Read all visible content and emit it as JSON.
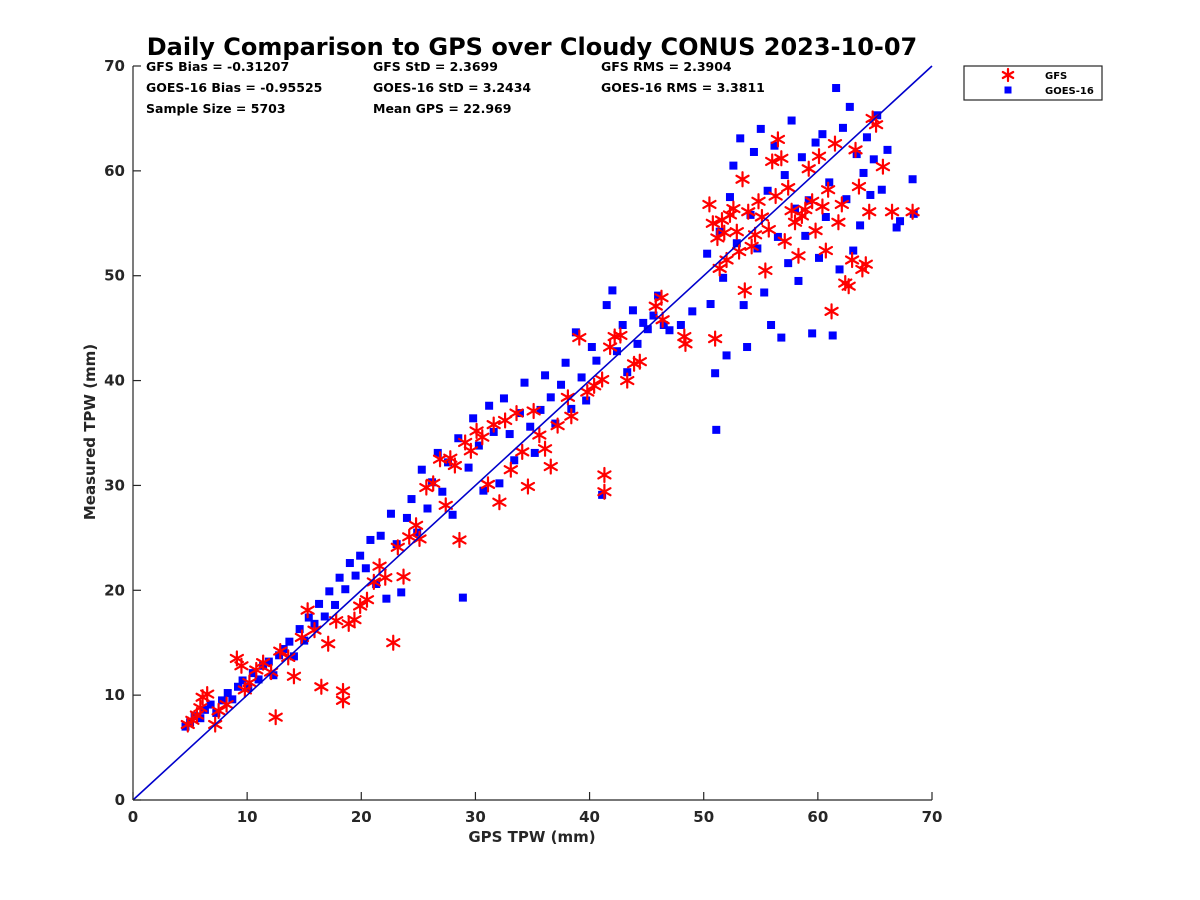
{
  "chart_data": {
    "type": "scatter",
    "title": "Daily Comparison to GPS over Cloudy CONUS 2023-10-07",
    "xlabel": "GPS TPW (mm)",
    "ylabel": "Measured TPW (mm)",
    "xlim": [
      0,
      70
    ],
    "ylim": [
      0,
      70
    ],
    "xticks": [
      "0",
      "10",
      "20",
      "30",
      "40",
      "50",
      "60",
      "70"
    ],
    "yticks": [
      "0",
      "10",
      "20",
      "30",
      "40",
      "50",
      "60",
      "70"
    ],
    "grid": false,
    "legend_position": "outside-top-right",
    "reference_line": {
      "x": [
        0,
        70
      ],
      "y": [
        0,
        70
      ],
      "color": "#0000cc"
    },
    "stats": [
      [
        "GFS Bias = -0.31207",
        "GFS StD = 2.3699",
        "GFS RMS = 2.3904"
      ],
      [
        "GOES-16 Bias = -0.95525",
        "GOES-16 StD = 3.2434",
        "GOES-16 RMS = 3.3811"
      ],
      [
        "Sample Size = 5703",
        "Mean GPS = 22.969",
        ""
      ]
    ],
    "series": [
      {
        "name": "GFS",
        "marker": "asterisk",
        "color": "#ff0000",
        "points": [
          [
            4.8,
            7.2
          ],
          [
            5.2,
            7.6
          ],
          [
            5.6,
            8.1
          ],
          [
            5.9,
            8.8
          ],
          [
            6.1,
            9.8
          ],
          [
            6.5,
            10.1
          ],
          [
            7.2,
            7.2
          ],
          [
            7.5,
            8.5
          ],
          [
            8.2,
            9.1
          ],
          [
            9.1,
            13.5
          ],
          [
            9.5,
            12.8
          ],
          [
            9.8,
            10.5
          ],
          [
            10.2,
            11.2
          ],
          [
            10.8,
            12.4
          ],
          [
            11.4,
            13.1
          ],
          [
            12.1,
            12.2
          ],
          [
            12.5,
            7.9
          ],
          [
            12.9,
            14.2
          ],
          [
            13.6,
            13.6
          ],
          [
            14.1,
            11.8
          ],
          [
            14.8,
            15.5
          ],
          [
            15.3,
            18.1
          ],
          [
            15.9,
            16.2
          ],
          [
            16.5,
            10.8
          ],
          [
            17.1,
            14.9
          ],
          [
            17.8,
            17.1
          ],
          [
            18.4,
            9.5
          ],
          [
            18.4,
            10.4
          ],
          [
            18.9,
            16.8
          ],
          [
            19.4,
            17.2
          ],
          [
            19.9,
            18.5
          ],
          [
            20.5,
            19.1
          ],
          [
            21.1,
            20.8
          ],
          [
            21.6,
            22.3
          ],
          [
            22.1,
            21.2
          ],
          [
            22.8,
            15.0
          ],
          [
            23.2,
            24.1
          ],
          [
            23.7,
            21.3
          ],
          [
            24.2,
            25.1
          ],
          [
            24.8,
            26.2
          ],
          [
            25.1,
            24.9
          ],
          [
            25.7,
            29.8
          ],
          [
            26.3,
            30.2
          ],
          [
            26.9,
            32.5
          ],
          [
            27.4,
            28.1
          ],
          [
            27.8,
            32.6
          ],
          [
            28.2,
            31.9
          ],
          [
            28.6,
            24.8
          ],
          [
            29.1,
            34.1
          ],
          [
            29.6,
            33.3
          ],
          [
            30.1,
            35.2
          ],
          [
            30.6,
            34.6
          ],
          [
            31.1,
            30.1
          ],
          [
            31.6,
            35.8
          ],
          [
            32.1,
            28.4
          ],
          [
            32.6,
            36.2
          ],
          [
            33.1,
            31.5
          ],
          [
            33.6,
            36.9
          ],
          [
            34.1,
            33.2
          ],
          [
            34.6,
            29.9
          ],
          [
            35.1,
            37.1
          ],
          [
            35.6,
            34.8
          ],
          [
            36.1,
            33.5
          ],
          [
            36.6,
            31.8
          ],
          [
            37.2,
            35.7
          ],
          [
            38.1,
            38.4
          ],
          [
            38.4,
            36.6
          ],
          [
            39.1,
            44.1
          ],
          [
            39.8,
            38.9
          ],
          [
            40.4,
            39.5
          ],
          [
            41.1,
            40.1
          ],
          [
            41.3,
            31.0
          ],
          [
            41.3,
            29.4
          ],
          [
            41.8,
            43.2
          ],
          [
            42.2,
            44.2
          ],
          [
            42.7,
            44.3
          ],
          [
            43.3,
            40.0
          ],
          [
            43.9,
            41.6
          ],
          [
            44.4,
            41.8
          ],
          [
            45.8,
            47.1
          ],
          [
            46.3,
            47.9
          ],
          [
            46.4,
            45.8
          ],
          [
            48.3,
            44.2
          ],
          [
            48.4,
            43.5
          ],
          [
            50.5,
            56.8
          ],
          [
            50.8,
            55.0
          ],
          [
            51.0,
            44.0
          ],
          [
            51.2,
            53.6
          ],
          [
            51.4,
            50.7
          ],
          [
            51.6,
            55.3
          ],
          [
            51.8,
            54.1
          ],
          [
            52.0,
            51.5
          ],
          [
            52.3,
            55.8
          ],
          [
            52.6,
            56.4
          ],
          [
            52.9,
            54.2
          ],
          [
            53.1,
            52.3
          ],
          [
            53.4,
            59.2
          ],
          [
            53.6,
            48.6
          ],
          [
            53.9,
            56.1
          ],
          [
            54.2,
            52.8
          ],
          [
            54.5,
            53.9
          ],
          [
            54.8,
            57.1
          ],
          [
            55.1,
            55.6
          ],
          [
            55.4,
            50.5
          ],
          [
            55.7,
            54.4
          ],
          [
            56.0,
            60.9
          ],
          [
            56.3,
            57.6
          ],
          [
            56.5,
            63.0
          ],
          [
            56.8,
            61.2
          ],
          [
            57.1,
            53.3
          ],
          [
            57.4,
            58.4
          ],
          [
            57.7,
            56.2
          ],
          [
            58.0,
            55.1
          ],
          [
            58.3,
            51.9
          ],
          [
            58.6,
            55.7
          ],
          [
            58.9,
            56.3
          ],
          [
            59.2,
            60.2
          ],
          [
            59.5,
            57.1
          ],
          [
            59.8,
            54.3
          ],
          [
            60.1,
            61.4
          ],
          [
            60.4,
            56.6
          ],
          [
            60.7,
            52.4
          ],
          [
            60.9,
            58.2
          ],
          [
            61.2,
            46.6
          ],
          [
            61.5,
            62.6
          ],
          [
            61.8,
            55.1
          ],
          [
            62.1,
            56.8
          ],
          [
            62.4,
            49.3
          ],
          [
            62.7,
            49.0
          ],
          [
            63.0,
            51.5
          ],
          [
            63.3,
            62.0
          ],
          [
            63.6,
            58.5
          ],
          [
            63.9,
            50.6
          ],
          [
            64.2,
            51.1
          ],
          [
            64.5,
            56.1
          ],
          [
            64.8,
            65.0
          ],
          [
            65.1,
            64.4
          ],
          [
            65.7,
            60.4
          ],
          [
            66.5,
            56.1
          ],
          [
            68.3,
            56.1
          ]
        ]
      },
      {
        "name": "GOES-16",
        "marker": "square",
        "color": "#0000ff",
        "points": [
          [
            4.6,
            7.0
          ],
          [
            5.0,
            7.4
          ],
          [
            5.4,
            8.0
          ],
          [
            5.9,
            7.8
          ],
          [
            6.3,
            8.6
          ],
          [
            6.8,
            9.1
          ],
          [
            7.3,
            8.3
          ],
          [
            7.8,
            9.5
          ],
          [
            8.3,
            10.2
          ],
          [
            8.7,
            9.6
          ],
          [
            9.2,
            10.8
          ],
          [
            9.6,
            11.4
          ],
          [
            10.1,
            10.7
          ],
          [
            10.5,
            12.1
          ],
          [
            11.0,
            11.5
          ],
          [
            11.4,
            12.8
          ],
          [
            11.9,
            13.2
          ],
          [
            12.3,
            11.9
          ],
          [
            12.8,
            13.8
          ],
          [
            13.2,
            14.4
          ],
          [
            13.7,
            15.1
          ],
          [
            14.1,
            13.7
          ],
          [
            14.6,
            16.3
          ],
          [
            15.0,
            15.2
          ],
          [
            15.4,
            17.4
          ],
          [
            15.9,
            16.8
          ],
          [
            16.3,
            18.7
          ],
          [
            16.8,
            17.5
          ],
          [
            17.2,
            19.9
          ],
          [
            17.7,
            18.6
          ],
          [
            18.1,
            21.2
          ],
          [
            18.6,
            20.1
          ],
          [
            19.0,
            22.6
          ],
          [
            19.5,
            21.4
          ],
          [
            19.9,
            23.3
          ],
          [
            20.4,
            22.1
          ],
          [
            20.8,
            24.8
          ],
          [
            21.3,
            20.6
          ],
          [
            21.7,
            25.2
          ],
          [
            22.2,
            19.2
          ],
          [
            22.6,
            27.3
          ],
          [
            23.1,
            24.4
          ],
          [
            23.5,
            19.8
          ],
          [
            24.0,
            26.9
          ],
          [
            24.4,
            28.7
          ],
          [
            24.9,
            25.5
          ],
          [
            25.3,
            31.5
          ],
          [
            25.8,
            27.8
          ],
          [
            26.2,
            30.3
          ],
          [
            26.7,
            33.1
          ],
          [
            27.1,
            29.4
          ],
          [
            27.6,
            32.2
          ],
          [
            28.0,
            27.2
          ],
          [
            28.5,
            34.5
          ],
          [
            28.9,
            19.3
          ],
          [
            29.4,
            31.7
          ],
          [
            29.8,
            36.4
          ],
          [
            30.3,
            33.8
          ],
          [
            30.7,
            29.5
          ],
          [
            31.2,
            37.6
          ],
          [
            31.6,
            35.1
          ],
          [
            32.1,
            30.2
          ],
          [
            32.5,
            38.3
          ],
          [
            33.0,
            34.9
          ],
          [
            33.4,
            32.4
          ],
          [
            33.9,
            36.9
          ],
          [
            34.3,
            39.8
          ],
          [
            34.8,
            35.6
          ],
          [
            35.2,
            33.1
          ],
          [
            35.7,
            37.2
          ],
          [
            36.1,
            40.5
          ],
          [
            36.6,
            38.4
          ],
          [
            37.0,
            35.9
          ],
          [
            37.5,
            39.6
          ],
          [
            37.9,
            41.7
          ],
          [
            38.4,
            37.3
          ],
          [
            38.8,
            44.6
          ],
          [
            39.3,
            40.3
          ],
          [
            39.7,
            38.1
          ],
          [
            40.2,
            43.2
          ],
          [
            40.6,
            41.9
          ],
          [
            41.1,
            29.1
          ],
          [
            41.5,
            47.2
          ],
          [
            42.0,
            48.6
          ],
          [
            42.4,
            42.8
          ],
          [
            42.9,
            45.3
          ],
          [
            43.3,
            40.8
          ],
          [
            43.8,
            46.7
          ],
          [
            44.2,
            43.5
          ],
          [
            44.7,
            45.5
          ],
          [
            45.1,
            44.9
          ],
          [
            45.6,
            46.2
          ],
          [
            46.0,
            48.1
          ],
          [
            46.5,
            45.3
          ],
          [
            47.0,
            44.8
          ],
          [
            48.0,
            45.3
          ],
          [
            49.0,
            46.6
          ],
          [
            50.3,
            52.1
          ],
          [
            50.6,
            47.3
          ],
          [
            51.0,
            40.7
          ],
          [
            51.1,
            35.3
          ],
          [
            51.4,
            54.2
          ],
          [
            51.7,
            49.8
          ],
          [
            52.0,
            42.4
          ],
          [
            52.3,
            57.5
          ],
          [
            52.6,
            60.5
          ],
          [
            52.9,
            53.1
          ],
          [
            53.2,
            63.1
          ],
          [
            53.5,
            47.2
          ],
          [
            53.8,
            43.2
          ],
          [
            54.1,
            55.8
          ],
          [
            54.4,
            61.8
          ],
          [
            54.7,
            52.6
          ],
          [
            55.0,
            64.0
          ],
          [
            55.3,
            48.4
          ],
          [
            55.6,
            58.1
          ],
          [
            55.9,
            45.3
          ],
          [
            56.2,
            62.4
          ],
          [
            56.5,
            53.7
          ],
          [
            56.8,
            44.1
          ],
          [
            57.1,
            59.6
          ],
          [
            57.4,
            51.2
          ],
          [
            57.7,
            64.8
          ],
          [
            58.0,
            56.4
          ],
          [
            58.3,
            49.5
          ],
          [
            58.6,
            61.3
          ],
          [
            58.9,
            53.8
          ],
          [
            59.2,
            57.2
          ],
          [
            59.5,
            44.5
          ],
          [
            59.8,
            62.7
          ],
          [
            60.1,
            51.7
          ],
          [
            60.4,
            63.5
          ],
          [
            60.7,
            55.6
          ],
          [
            61.0,
            58.9
          ],
          [
            61.3,
            44.3
          ],
          [
            61.6,
            67.9
          ],
          [
            61.9,
            50.6
          ],
          [
            62.2,
            64.1
          ],
          [
            62.5,
            57.3
          ],
          [
            62.8,
            66.1
          ],
          [
            63.1,
            52.4
          ],
          [
            63.4,
            61.6
          ],
          [
            63.7,
            54.8
          ],
          [
            64.0,
            59.8
          ],
          [
            64.3,
            63.2
          ],
          [
            64.6,
            57.7
          ],
          [
            64.9,
            61.1
          ],
          [
            65.2,
            65.3
          ],
          [
            65.6,
            58.2
          ],
          [
            66.1,
            62.0
          ],
          [
            66.9,
            54.6
          ],
          [
            67.2,
            55.2
          ],
          [
            68.3,
            59.2
          ],
          [
            68.4,
            55.9
          ]
        ]
      }
    ]
  }
}
